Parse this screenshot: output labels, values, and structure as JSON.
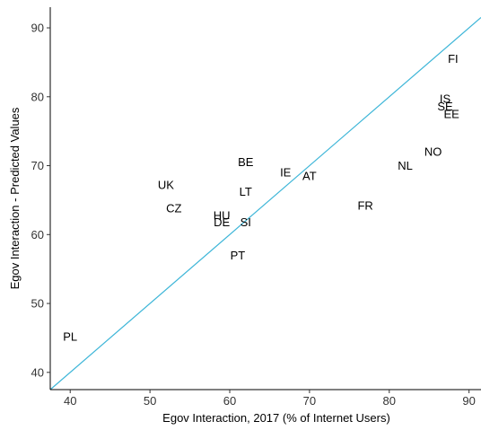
{
  "chart_data": {
    "type": "scatter",
    "title": "",
    "xlabel": "Egov Interaction, 2017 (% of Internet Users)",
    "ylabel": "Egov Interaction - Predicted Values",
    "xlim": [
      37.5,
      91.5
    ],
    "ylim": [
      37.5,
      93
    ],
    "xticks": [
      40,
      50,
      60,
      70,
      80,
      90
    ],
    "yticks": [
      40,
      50,
      60,
      70,
      80,
      90
    ],
    "grid": false,
    "line_color": "#3eb6d8",
    "reference_line": {
      "slope": 1,
      "intercept": 0
    },
    "points": [
      {
        "label": "FI",
        "x": 88,
        "y": 85.5
      },
      {
        "label": "IS",
        "x": 87,
        "y": 79.7
      },
      {
        "label": "SE",
        "x": 87,
        "y": 78.6
      },
      {
        "label": "EE",
        "x": 87.8,
        "y": 77.5
      },
      {
        "label": "NO",
        "x": 85.5,
        "y": 72
      },
      {
        "label": "NL",
        "x": 82,
        "y": 70
      },
      {
        "label": "BE",
        "x": 62,
        "y": 70.5
      },
      {
        "label": "IE",
        "x": 67,
        "y": 69
      },
      {
        "label": "AT",
        "x": 70,
        "y": 68.5
      },
      {
        "label": "UK",
        "x": 52,
        "y": 67.2
      },
      {
        "label": "LT",
        "x": 62,
        "y": 66.2
      },
      {
        "label": "FR",
        "x": 77,
        "y": 64.2
      },
      {
        "label": "CZ",
        "x": 53,
        "y": 63.8
      },
      {
        "label": "HU",
        "x": 59,
        "y": 62.8
      },
      {
        "label": "DE",
        "x": 59,
        "y": 61.8
      },
      {
        "label": "SI",
        "x": 62,
        "y": 61.8
      },
      {
        "label": "PT",
        "x": 61,
        "y": 57
      },
      {
        "label": "PL",
        "x": 40,
        "y": 45.2
      }
    ]
  }
}
